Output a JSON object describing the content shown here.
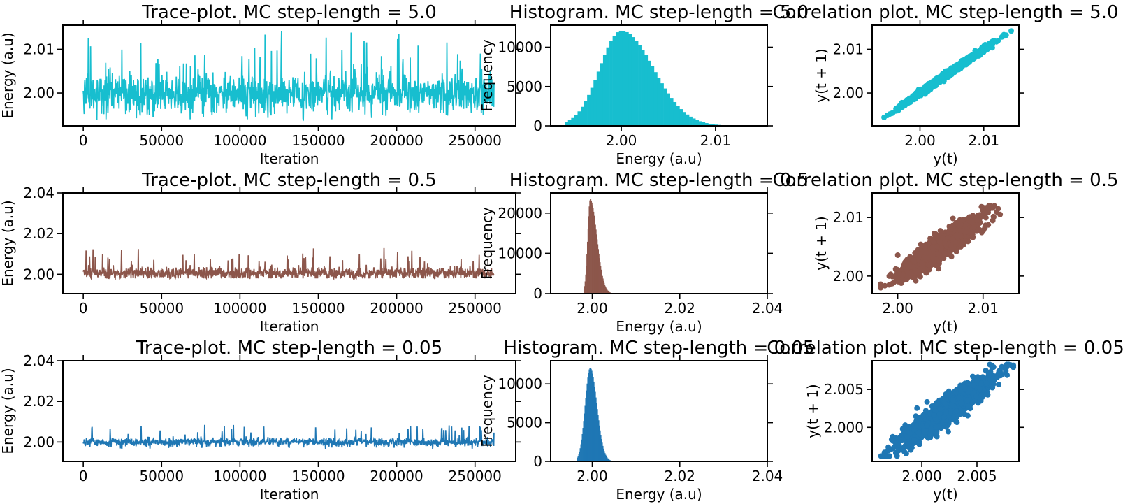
{
  "chart_data": [
    {
      "id": "trace-1",
      "type": "line",
      "title": "Trace-plot. MC step-length = 5.0",
      "xlabel": "Iteration",
      "ylabel": "Energy (a.u)",
      "xlim": [
        -13000,
        276000
      ],
      "ylim": [
        1.9925,
        2.0155
      ],
      "xticks": [
        0,
        50000,
        100000,
        150000,
        200000,
        250000
      ],
      "xtick_labels": [
        "0",
        "50000",
        "100000",
        "150000",
        "200000",
        "250000"
      ],
      "yticks": [
        2.0,
        2.01
      ],
      "ytick_labels": [
        "2.00",
        "2.01"
      ],
      "color": "#17becf",
      "series": {
        "x_range": [
          0,
          262144
        ],
        "center": 2.0,
        "band": [
          1.9955,
          2.0045
        ],
        "min": 1.994,
        "max": 2.0143
      }
    },
    {
      "id": "hist-1",
      "type": "bar",
      "title": "Histogram. MC step-length = 5.0",
      "xlabel": "Energy (a.u)",
      "ylabel": "Frequency",
      "xlim": [
        1.9925,
        2.0155
      ],
      "ylim": [
        0,
        12800
      ],
      "xticks": [
        2.0,
        2.01
      ],
      "xtick_labels": [
        "2.00",
        "2.01"
      ],
      "yticks": [
        0,
        5000,
        10000
      ],
      "ytick_labels": [
        "0",
        "5000",
        "10000"
      ],
      "color": "#17becf",
      "distribution": {
        "peak_x": 2.0,
        "peak_count": 12100,
        "range": [
          1.994,
          2.0143
        ]
      }
    },
    {
      "id": "corr-1",
      "type": "scatter",
      "title": "Correlation plot. MC step-length = 5.0",
      "xlabel": "y(t)",
      "ylabel": "y(t + 1)",
      "xlim": [
        1.9925,
        2.0155
      ],
      "ylim": [
        1.9925,
        2.0155
      ],
      "xticks": [
        2.0,
        2.01
      ],
      "xtick_labels": [
        "2.00",
        "2.01"
      ],
      "yticks": [
        2.0,
        2.01
      ],
      "ytick_labels": [
        "2.00",
        "2.01"
      ],
      "color": "#17becf",
      "cloud": {
        "range": [
          1.994,
          2.0143
        ],
        "spread": 0.0007
      }
    },
    {
      "id": "trace-2",
      "type": "line",
      "title": "Trace-plot. MC step-length = 0.5",
      "xlabel": "Iteration",
      "ylabel": "Energy (a.u)",
      "xlim": [
        -13000,
        276000
      ],
      "ylim": [
        1.9905,
        2.04
      ],
      "xticks": [
        0,
        50000,
        100000,
        150000,
        200000,
        250000
      ],
      "xtick_labels": [
        "0",
        "50000",
        "100000",
        "150000",
        "200000",
        "250000"
      ],
      "yticks": [
        2.0,
        2.02,
        2.04
      ],
      "ytick_labels": [
        "2.00",
        "2.02",
        "2.04"
      ],
      "color": "#8c564b",
      "series": {
        "x_range": [
          0,
          262144
        ],
        "center": 2.0005,
        "band": [
          1.9985,
          2.0045
        ],
        "min": 1.998,
        "max": 2.013
      }
    },
    {
      "id": "hist-2",
      "type": "bar",
      "title": "Histogram. MC step-length = 0.5",
      "xlabel": "Energy (a.u)",
      "ylabel": "Frequency",
      "xlim": [
        1.9905,
        2.04
      ],
      "ylim": [
        0,
        25000
      ],
      "xticks": [
        2.0,
        2.02,
        2.04
      ],
      "xtick_labels": [
        "2.00",
        "2.02",
        "2.04"
      ],
      "yticks": [
        0,
        10000,
        20000
      ],
      "ytick_labels": [
        "0",
        "10000",
        "20000"
      ],
      "color": "#8c564b",
      "distribution": {
        "peak_x": 1.9995,
        "peak_count": 23500,
        "range": [
          1.998,
          2.006
        ]
      }
    },
    {
      "id": "corr-2",
      "type": "scatter",
      "title": "Correlation plot. MC step-length = 0.5",
      "xlabel": "y(t)",
      "ylabel": "y(t + 1)",
      "xlim": [
        1.997,
        2.0142
      ],
      "ylim": [
        1.997,
        2.0142
      ],
      "xticks": [
        2.0,
        2.01
      ],
      "xtick_labels": [
        "2.00",
        "2.01"
      ],
      "yticks": [
        2.0,
        2.01
      ],
      "ytick_labels": [
        "2.00",
        "2.01"
      ],
      "color": "#8c564b",
      "cloud": {
        "range": [
          1.998,
          2.012
        ],
        "spread": 0.0022
      }
    },
    {
      "id": "trace-3",
      "type": "line",
      "title": "Trace-plot. MC step-length = 0.05",
      "xlabel": "Iteration",
      "ylabel": "Energy (a.u)",
      "xlim": [
        -13000,
        276000
      ],
      "ylim": [
        1.9905,
        2.04
      ],
      "xticks": [
        0,
        50000,
        100000,
        150000,
        200000,
        250000
      ],
      "xtick_labels": [
        "0",
        "50000",
        "100000",
        "150000",
        "200000",
        "250000"
      ],
      "yticks": [
        2.0,
        2.02,
        2.04
      ],
      "ytick_labels": [
        "2.00",
        "2.02",
        "2.04"
      ],
      "color": "#1f77b4",
      "series": {
        "x_range": [
          0,
          262144
        ],
        "center": 2.0,
        "band": [
          1.9985,
          2.0025
        ],
        "min": 1.9965,
        "max": 2.0085
      }
    },
    {
      "id": "hist-3",
      "type": "bar",
      "title": "Histogram. MC step-length = 0.05",
      "xlabel": "Energy (a.u)",
      "ylabel": "Frequency",
      "xlim": [
        1.9905,
        2.04
      ],
      "ylim": [
        0,
        13000
      ],
      "xticks": [
        2.0,
        2.02,
        2.04
      ],
      "xtick_labels": [
        "2.00",
        "2.02",
        "2.04"
      ],
      "yticks": [
        0,
        5000,
        10000
      ],
      "ytick_labels": [
        "0",
        "5000",
        "10000"
      ],
      "color": "#1f77b4",
      "distribution": {
        "peak_x": 1.9995,
        "peak_count": 12100,
        "range": [
          1.9965,
          2.006
        ]
      }
    },
    {
      "id": "corr-3",
      "type": "scatter",
      "title": "Correlation plot. MC step-length = 0.05",
      "xlabel": "y(t)",
      "ylabel": "y(t + 1)",
      "xlim": [
        1.9955,
        2.0088
      ],
      "ylim": [
        1.9955,
        2.0088
      ],
      "xticks": [
        2.0,
        2.005
      ],
      "xtick_labels": [
        "2.000",
        "2.005"
      ],
      "yticks": [
        2.0,
        2.005
      ],
      "ytick_labels": [
        "2.000",
        "2.005"
      ],
      "color": "#1f77b4",
      "cloud": {
        "range": [
          1.9962,
          2.0083
        ],
        "spread": 0.0019
      }
    }
  ]
}
